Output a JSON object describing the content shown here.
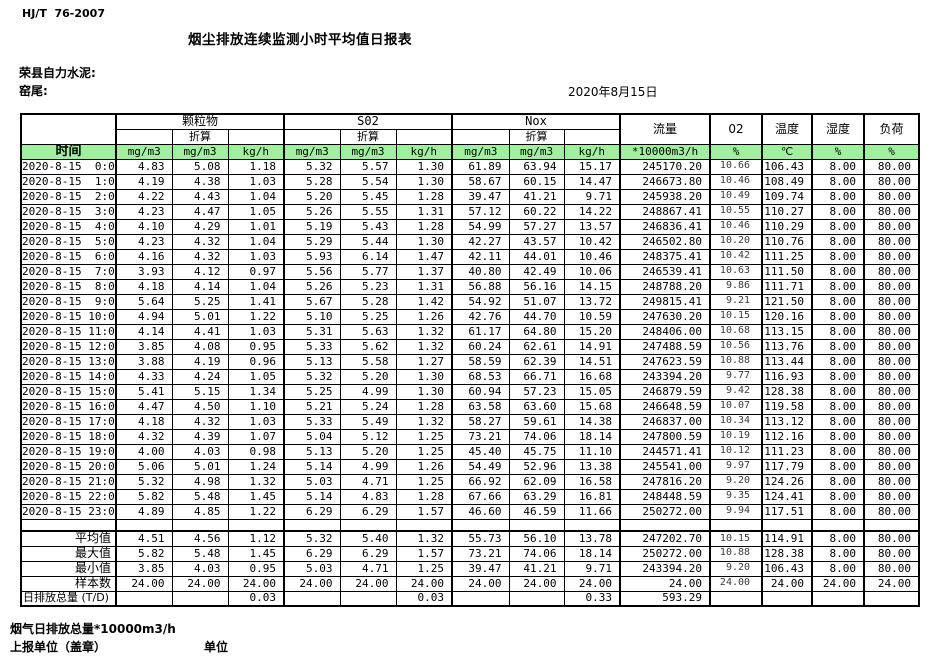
{
  "header": {
    "standard": "HJ/T  76-2007",
    "title": "烟尘排放连续监测小时平均值日报表",
    "company": "荣县自力水泥:",
    "location": "窑尾:",
    "date": "2020年8月15日"
  },
  "table": {
    "time_label": "时间",
    "converted_label": "折算",
    "groups": [
      "颗粒物",
      "S02",
      "Nox"
    ],
    "right_headers": [
      "流量",
      "02",
      "温度",
      "湿度",
      "负荷"
    ],
    "units": [
      "mg/m3",
      "mg/m3",
      "kg/h",
      "mg/m3",
      "mg/m3",
      "kg/h",
      "mg/m3",
      "mg/m3",
      "kg/h",
      "*10000m3/h",
      "%",
      "℃",
      "%",
      "%"
    ],
    "rows": [
      {
        "time": "2020-8-15  0:00",
        "values": [
          "4.83",
          "5.08",
          "1.18",
          "5.32",
          "5.57",
          "1.30",
          "61.89",
          "63.94",
          "15.17",
          "245170.20",
          "10.66",
          "106.43",
          "8.00",
          "80.00"
        ]
      },
      {
        "time": "2020-8-15  1:00",
        "values": [
          "4.19",
          "4.38",
          "1.03",
          "5.28",
          "5.54",
          "1.30",
          "58.67",
          "60.15",
          "14.47",
          "246673.80",
          "10.46",
          "108.49",
          "8.00",
          "80.00"
        ]
      },
      {
        "time": "2020-8-15  2:00",
        "values": [
          "4.22",
          "4.43",
          "1.04",
          "5.20",
          "5.45",
          "1.28",
          "39.47",
          "41.21",
          "9.71",
          "245938.20",
          "10.49",
          "109.74",
          "8.00",
          "80.00"
        ]
      },
      {
        "time": "2020-8-15  3:00",
        "values": [
          "4.23",
          "4.47",
          "1.05",
          "5.26",
          "5.55",
          "1.31",
          "57.12",
          "60.22",
          "14.22",
          "248867.41",
          "10.55",
          "110.27",
          "8.00",
          "80.00"
        ]
      },
      {
        "time": "2020-8-15  4:00",
        "values": [
          "4.10",
          "4.29",
          "1.01",
          "5.19",
          "5.43",
          "1.28",
          "54.99",
          "57.27",
          "13.57",
          "246836.41",
          "10.46",
          "110.29",
          "8.00",
          "80.00"
        ]
      },
      {
        "time": "2020-8-15  5:00",
        "values": [
          "4.23",
          "4.32",
          "1.04",
          "5.29",
          "5.44",
          "1.30",
          "42.27",
          "43.57",
          "10.42",
          "246502.80",
          "10.20",
          "110.76",
          "8.00",
          "80.00"
        ]
      },
      {
        "time": "2020-8-15  6:00",
        "values": [
          "4.16",
          "4.32",
          "1.03",
          "5.93",
          "6.14",
          "1.47",
          "42.11",
          "44.01",
          "10.46",
          "248375.41",
          "10.42",
          "111.25",
          "8.00",
          "80.00"
        ]
      },
      {
        "time": "2020-8-15  7:00",
        "values": [
          "3.93",
          "4.12",
          "0.97",
          "5.56",
          "5.77",
          "1.37",
          "40.80",
          "42.49",
          "10.06",
          "246539.41",
          "10.63",
          "111.50",
          "8.00",
          "80.00"
        ]
      },
      {
        "time": "2020-8-15  8:00",
        "values": [
          "4.18",
          "4.14",
          "1.04",
          "5.26",
          "5.23",
          "1.31",
          "56.88",
          "56.16",
          "14.15",
          "248788.20",
          "9.86",
          "111.71",
          "8.00",
          "80.00"
        ]
      },
      {
        "time": "2020-8-15  9:00",
        "values": [
          "5.64",
          "5.25",
          "1.41",
          "5.67",
          "5.28",
          "1.42",
          "54.92",
          "51.07",
          "13.72",
          "249815.41",
          "9.21",
          "121.50",
          "8.00",
          "80.00"
        ]
      },
      {
        "time": "2020-8-15 10:00",
        "values": [
          "4.94",
          "5.01",
          "1.22",
          "5.10",
          "5.25",
          "1.26",
          "42.76",
          "44.70",
          "10.59",
          "247630.20",
          "10.15",
          "120.16",
          "8.00",
          "80.00"
        ]
      },
      {
        "time": "2020-8-15 11:00",
        "values": [
          "4.14",
          "4.41",
          "1.03",
          "5.31",
          "5.63",
          "1.32",
          "61.17",
          "64.80",
          "15.20",
          "248406.00",
          "10.68",
          "113.15",
          "8.00",
          "80.00"
        ]
      },
      {
        "time": "2020-8-15 12:00",
        "values": [
          "3.85",
          "4.08",
          "0.95",
          "5.33",
          "5.62",
          "1.32",
          "60.24",
          "62.61",
          "14.91",
          "247488.59",
          "10.56",
          "113.76",
          "8.00",
          "80.00"
        ]
      },
      {
        "time": "2020-8-15 13:00",
        "values": [
          "3.88",
          "4.19",
          "0.96",
          "5.13",
          "5.58",
          "1.27",
          "58.59",
          "62.39",
          "14.51",
          "247623.59",
          "10.88",
          "113.44",
          "8.00",
          "80.00"
        ]
      },
      {
        "time": "2020-8-15 14:00",
        "values": [
          "4.33",
          "4.24",
          "1.05",
          "5.32",
          "5.20",
          "1.30",
          "68.53",
          "66.71",
          "16.68",
          "243394.20",
          "9.77",
          "116.93",
          "8.00",
          "80.00"
        ]
      },
      {
        "time": "2020-8-15 15:00",
        "values": [
          "5.41",
          "5.15",
          "1.34",
          "5.25",
          "4.99",
          "1.30",
          "60.94",
          "57.23",
          "15.05",
          "246879.59",
          "9.42",
          "128.38",
          "8.00",
          "80.00"
        ]
      },
      {
        "time": "2020-8-15 16:00",
        "values": [
          "4.47",
          "4.50",
          "1.10",
          "5.21",
          "5.24",
          "1.28",
          "63.58",
          "63.60",
          "15.68",
          "246648.59",
          "10.07",
          "119.58",
          "8.00",
          "80.00"
        ]
      },
      {
        "time": "2020-8-15 17:00",
        "values": [
          "4.18",
          "4.32",
          "1.03",
          "5.33",
          "5.49",
          "1.32",
          "58.27",
          "59.61",
          "14.38",
          "246837.00",
          "10.34",
          "113.12",
          "8.00",
          "80.00"
        ]
      },
      {
        "time": "2020-8-15 18:00",
        "values": [
          "4.32",
          "4.39",
          "1.07",
          "5.04",
          "5.12",
          "1.25",
          "73.21",
          "74.06",
          "18.14",
          "247800.59",
          "10.19",
          "112.16",
          "8.00",
          "80.00"
        ]
      },
      {
        "time": "2020-8-15 19:00",
        "values": [
          "4.00",
          "4.03",
          "0.98",
          "5.13",
          "5.20",
          "1.25",
          "45.40",
          "45.75",
          "11.10",
          "244571.41",
          "10.12",
          "111.23",
          "8.00",
          "80.00"
        ]
      },
      {
        "time": "2020-8-15 20:00",
        "values": [
          "5.06",
          "5.01",
          "1.24",
          "5.14",
          "4.99",
          "1.26",
          "54.49",
          "52.96",
          "13.38",
          "245541.00",
          "9.97",
          "117.79",
          "8.00",
          "80.00"
        ]
      },
      {
        "time": "2020-8-15 21:00",
        "values": [
          "5.32",
          "4.98",
          "1.32",
          "5.03",
          "4.71",
          "1.25",
          "66.92",
          "62.09",
          "16.58",
          "247816.20",
          "9.20",
          "124.26",
          "8.00",
          "80.00"
        ]
      },
      {
        "time": "2020-8-15 22:00",
        "values": [
          "5.82",
          "5.48",
          "1.45",
          "5.14",
          "4.83",
          "1.28",
          "67.66",
          "63.29",
          "16.81",
          "248448.59",
          "9.35",
          "124.41",
          "8.00",
          "80.00"
        ]
      },
      {
        "time": "2020-8-15 23:00",
        "values": [
          "4.89",
          "4.85",
          "1.22",
          "6.29",
          "6.29",
          "1.57",
          "46.60",
          "46.59",
          "11.66",
          "250272.00",
          "9.94",
          "117.51",
          "8.00",
          "80.00"
        ]
      }
    ],
    "summary": [
      {
        "label": "平均值",
        "values": [
          "4.51",
          "4.56",
          "1.12",
          "5.32",
          "5.40",
          "1.32",
          "55.73",
          "56.10",
          "13.78",
          "247202.70",
          "10.15",
          "114.91",
          "8.00",
          "80.00"
        ]
      },
      {
        "label": "最大值",
        "values": [
          "5.82",
          "5.48",
          "1.45",
          "6.29",
          "6.29",
          "1.57",
          "73.21",
          "74.06",
          "18.14",
          "250272.00",
          "10.88",
          "128.38",
          "8.00",
          "80.00"
        ]
      },
      {
        "label": "最小值",
        "values": [
          "3.85",
          "4.03",
          "0.95",
          "5.03",
          "4.71",
          "1.25",
          "39.47",
          "41.21",
          "9.71",
          "243394.20",
          "9.20",
          "106.43",
          "8.00",
          "80.00"
        ]
      },
      {
        "label": "样本数",
        "values": [
          "24.00",
          "24.00",
          "24.00",
          "24.00",
          "24.00",
          "24.00",
          "24.00",
          "24.00",
          "24.00",
          "24.00",
          "24.00",
          "24.00",
          "24.00",
          "24.00"
        ]
      },
      {
        "label": "日排放总量 (T/D)",
        "values": [
          "",
          "",
          "0.03",
          "",
          "",
          "0.03",
          "",
          "",
          "0.33",
          "593.29",
          "",
          "",
          "",
          ""
        ]
      }
    ]
  },
  "footer": {
    "note": "烟气日排放总量*10000m3/h",
    "report_unit": "上报单位（盖章）",
    "unit": "单位"
  },
  "colors": {
    "header_green": "#a0f0a0",
    "border_black": "#000000",
    "background": "#ffffff"
  }
}
